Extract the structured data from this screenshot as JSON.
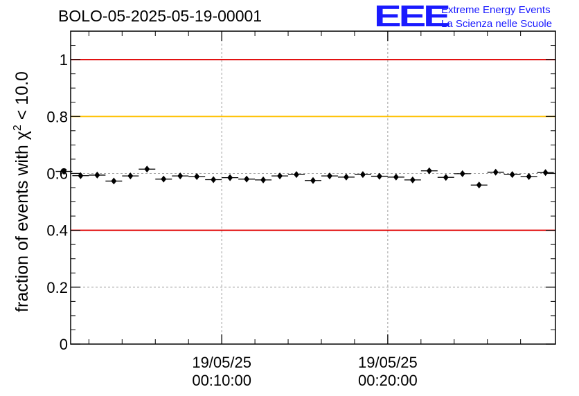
{
  "title": "BOLO-05-2025-05-19-00001",
  "logo": {
    "mark": "EEE",
    "line1": "Extreme Energy Events",
    "line2": "La Scienza nelle Scuole",
    "color": "#1a1aff"
  },
  "chart_data": {
    "type": "scatter",
    "ylabel_prefix": "fraction of events with χ",
    "ylabel_sup": "2",
    "ylabel_suffix": " < 10.0",
    "xlim": [
      1.4,
      30.6
    ],
    "ylim": [
      0,
      1.1
    ],
    "yticks": [
      {
        "value": 0,
        "label": "0"
      },
      {
        "value": 0.2,
        "label": "0.2"
      },
      {
        "value": 0.4,
        "label": "0.4"
      },
      {
        "value": 0.6,
        "label": "0.6"
      },
      {
        "value": 0.8,
        "label": "0.8"
      },
      {
        "value": 1,
        "label": "1"
      }
    ],
    "xticks": [
      {
        "value": 10.5,
        "line1": "19/05/25",
        "line2": "00:10:00"
      },
      {
        "value": 20.5,
        "line1": "19/05/25",
        "line2": "00:20:00"
      }
    ],
    "x_minor_ticks": [
      2.5,
      4.5,
      6.5,
      8.5,
      12.5,
      14.5,
      16.5,
      18.5,
      22.5,
      24.5,
      26.5,
      28.5
    ],
    "grid": true,
    "reference_lines": [
      {
        "y": 1.0,
        "color": "#e00000"
      },
      {
        "y": 0.8,
        "color": "#ffc000"
      },
      {
        "y": 0.4,
        "color": "#e00000"
      }
    ],
    "series": [
      {
        "x": [
          1,
          2,
          3,
          4,
          5,
          6,
          7,
          8,
          9,
          10,
          11,
          12,
          13,
          14,
          15,
          16,
          17,
          18,
          19,
          20,
          21,
          22,
          23,
          24,
          25,
          26,
          27,
          28,
          29,
          30
        ],
        "y": [
          0.607,
          0.592,
          0.594,
          0.573,
          0.591,
          0.615,
          0.58,
          0.591,
          0.589,
          0.578,
          0.585,
          0.58,
          0.577,
          0.591,
          0.596,
          0.575,
          0.591,
          0.587,
          0.596,
          0.59,
          0.587,
          0.577,
          0.609,
          0.586,
          0.599,
          0.559,
          0.604,
          0.596,
          0.589,
          0.603
        ],
        "xerr": 0.5,
        "yerr": 0.007,
        "color": "#000000"
      }
    ]
  }
}
